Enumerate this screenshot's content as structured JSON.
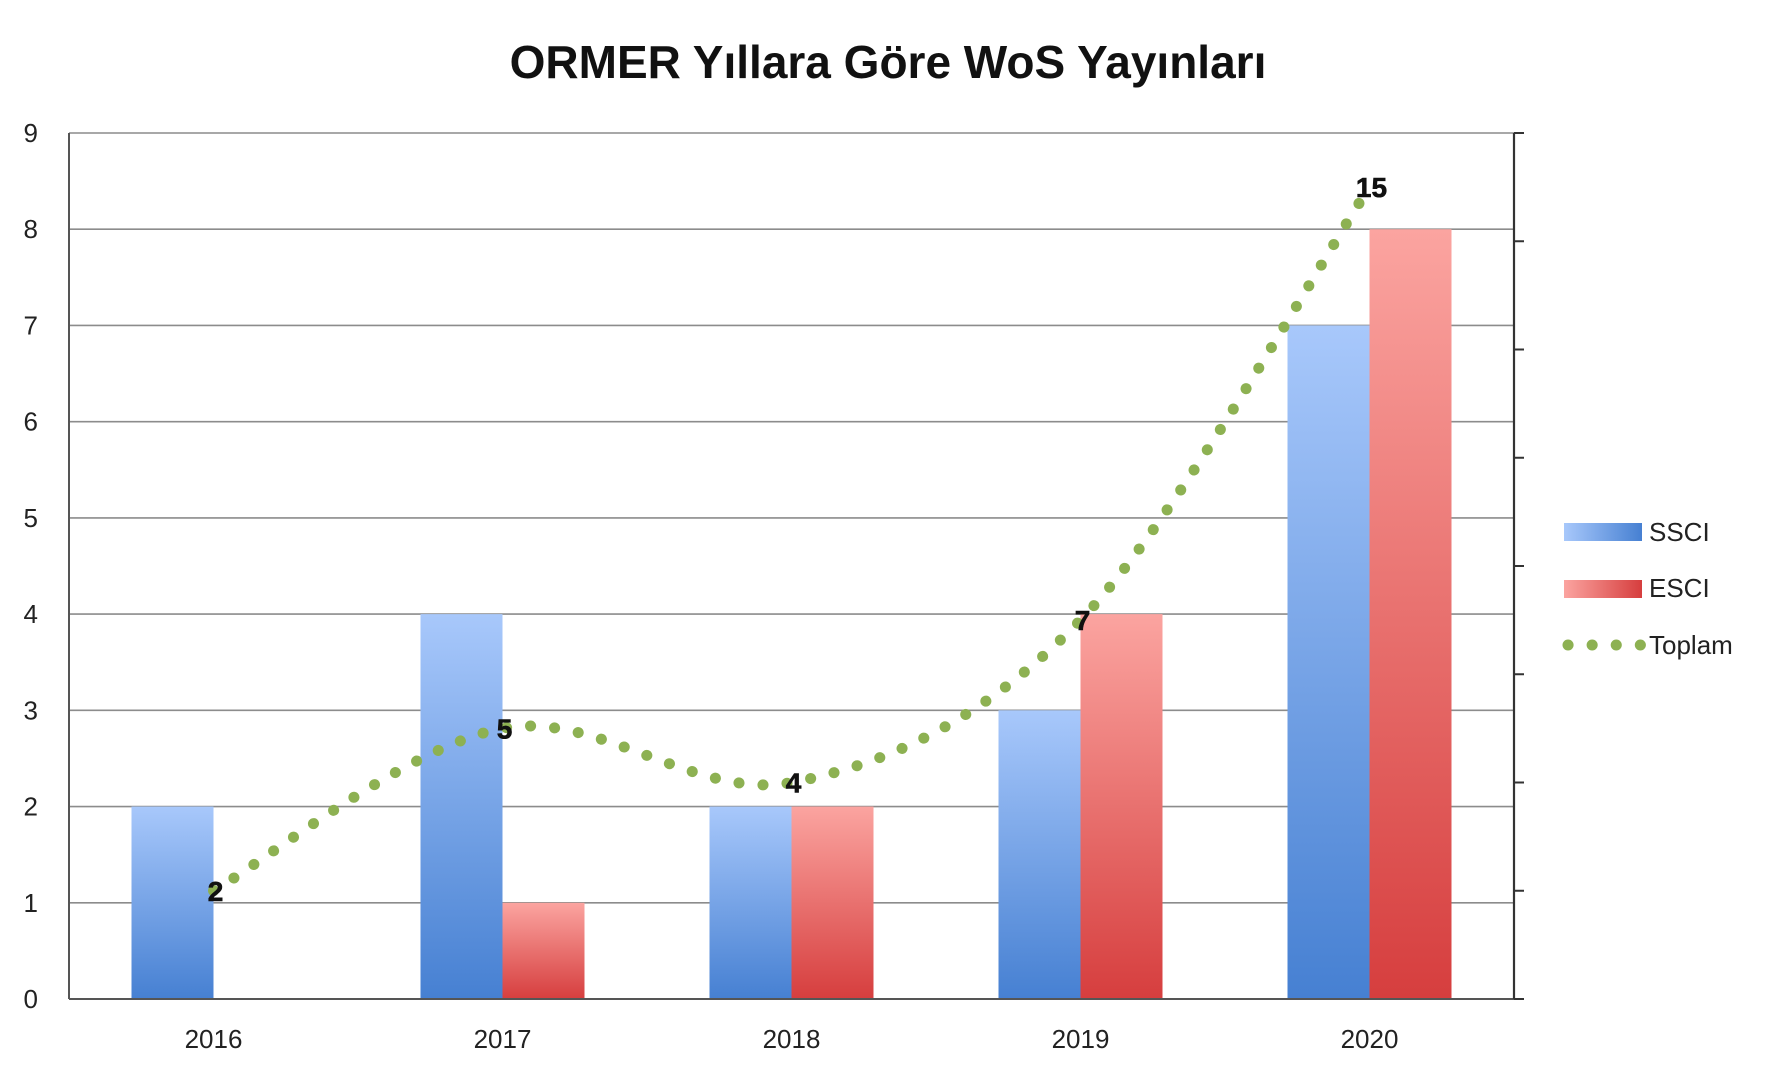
{
  "chart_data": {
    "type": "bar",
    "title": "ORMER Yıllara Göre WoS Yayınları",
    "categories": [
      "2016",
      "2017",
      "2018",
      "2019",
      "2020"
    ],
    "series": [
      {
        "name": "SSCI",
        "type": "bar",
        "values": [
          2,
          4,
          2,
          3,
          7
        ],
        "color": "#5b8fdc"
      },
      {
        "name": "ESCI",
        "type": "bar",
        "values": [
          0,
          1,
          2,
          4,
          8
        ],
        "color": "#e05858"
      },
      {
        "name": "Toplam",
        "type": "line",
        "style": "dotted",
        "values": [
          2,
          5,
          4,
          7,
          15
        ],
        "data_labels": [
          "2",
          "5",
          "4",
          "7",
          "15"
        ],
        "color": "#8db152"
      }
    ],
    "ylim": [
      0,
      9
    ],
    "yticks": [
      "0",
      "1",
      "2",
      "3",
      "4",
      "5",
      "6",
      "7",
      "8",
      "9"
    ],
    "secondary_axis": {
      "position": "right",
      "ylim": [
        0,
        16
      ],
      "tick_labels_shown": false
    },
    "grid": true,
    "legend": "right",
    "xlabel": "",
    "ylabel": ""
  }
}
